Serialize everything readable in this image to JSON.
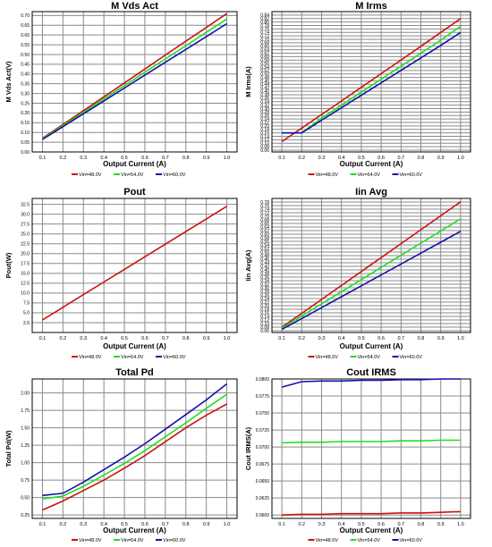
{
  "colors": {
    "vin48": "#cc1111",
    "vin54": "#22dd22",
    "vin60": "#1111aa",
    "grid": "#8a8a8a",
    "axis": "#000000"
  },
  "legend": [
    "Vin=48.0V",
    "Vin=54.0V",
    "Vin=60.0V"
  ],
  "chart_data": [
    {
      "type": "line",
      "title": "M Vds Act",
      "xlabel": "Output Current (A)",
      "ylabel": "M Vds Act(V)",
      "x": [
        0.1,
        0.2,
        0.3,
        0.4,
        0.5,
        0.6,
        0.7,
        0.8,
        0.9,
        1.0
      ],
      "xticks": [
        "0.1",
        "0.2",
        "0.3",
        "0.4",
        "0.5",
        "0.6",
        "0.7",
        "0.8",
        "0.9",
        "1.0"
      ],
      "ylim": [
        0.0,
        0.72
      ],
      "yticks": [
        "0.00",
        "0.05",
        "0.10",
        "0.15",
        "0.20",
        "0.25",
        "0.30",
        "0.35",
        "0.40",
        "0.45",
        "0.50",
        "0.55",
        "0.60",
        "0.65",
        "0.70"
      ],
      "series": [
        {
          "name": "Vin=48.0V",
          "color": "#cc1111",
          "values": [
            0.07,
            0.141,
            0.212,
            0.283,
            0.354,
            0.425,
            0.497,
            0.568,
            0.639,
            0.71
          ]
        },
        {
          "name": "Vin=54.0V",
          "color": "#22dd22",
          "values": [
            0.067,
            0.135,
            0.204,
            0.272,
            0.34,
            0.409,
            0.477,
            0.545,
            0.614,
            0.682
          ]
        },
        {
          "name": "Vin=60.0V",
          "color": "#1111aa",
          "values": [
            0.064,
            0.13,
            0.196,
            0.262,
            0.328,
            0.394,
            0.46,
            0.526,
            0.592,
            0.658
          ]
        }
      ]
    },
    {
      "type": "line",
      "title": "M Irms",
      "xlabel": "Output Current (A)",
      "ylabel": "M Irms(A)",
      "x": [
        0.1,
        0.2,
        0.3,
        0.4,
        0.5,
        0.6,
        0.7,
        0.8,
        0.9,
        1.0
      ],
      "xticks": [
        "0.1",
        "0.2",
        "0.3",
        "0.4",
        "0.5",
        "0.6",
        "0.7",
        "0.8",
        "0.9",
        "1.0"
      ],
      "ylim": [
        0.05,
        0.86
      ],
      "yticks": [
        "0.06",
        "0.08",
        "0.10",
        "0.12",
        "0.14",
        "0.16",
        "0.18",
        "0.20",
        "0.22",
        "0.24",
        "0.26",
        "0.28",
        "0.30",
        "0.32",
        "0.34",
        "0.36",
        "0.38",
        "0.40",
        "0.42",
        "0.44",
        "0.46",
        "0.48",
        "0.50",
        "0.52",
        "0.54",
        "0.56",
        "0.58",
        "0.60",
        "0.62",
        "0.64",
        "0.66",
        "0.68",
        "0.70",
        "0.72",
        "0.74",
        "0.76",
        "0.78",
        "0.80",
        "0.82",
        "0.84"
      ],
      "series": [
        {
          "name": "Vin=48.0V",
          "color": "#cc1111",
          "values": [
            0.11,
            0.188,
            0.266,
            0.344,
            0.423,
            0.502,
            0.581,
            0.66,
            0.74,
            0.82
          ]
        },
        {
          "name": "Vin=54.0V",
          "color": "#22dd22",
          "values": [
            0.16,
            0.16,
            0.245,
            0.32,
            0.395,
            0.47,
            0.545,
            0.62,
            0.695,
            0.775
          ]
        },
        {
          "name": "Vin=60.0V",
          "color": "#1111aa",
          "values": [
            0.16,
            0.16,
            0.233,
            0.305,
            0.377,
            0.449,
            0.521,
            0.593,
            0.665,
            0.74
          ]
        }
      ]
    },
    {
      "type": "line",
      "title": "Pout",
      "xlabel": "Output Current (A)",
      "ylabel": "Pout(W)",
      "x": [
        0.1,
        0.2,
        0.3,
        0.4,
        0.5,
        0.6,
        0.7,
        0.8,
        0.9,
        1.0
      ],
      "xticks": [
        "0.1",
        "0.2",
        "0.3",
        "0.4",
        "0.5",
        "0.6",
        "0.7",
        "0.8",
        "0.9",
        "1.0"
      ],
      "ylim": [
        0.0,
        34.0
      ],
      "yticks": [
        "2.5",
        "5.0",
        "7.5",
        "10.0",
        "12.5",
        "15.0",
        "17.5",
        "20.0",
        "22.5",
        "25.0",
        "27.5",
        "30.0",
        "32.5"
      ],
      "series": [
        {
          "name": "Vin=48.0V",
          "color": "#cc1111",
          "values": [
            3.2,
            6.4,
            9.6,
            12.8,
            16.0,
            19.2,
            22.4,
            25.6,
            28.8,
            32.0
          ]
        }
      ]
    },
    {
      "type": "line",
      "title": "Iin Avg",
      "xlabel": "Output Current (A)",
      "ylabel": "Iin Avg(A)",
      "x": [
        0.1,
        0.2,
        0.3,
        0.4,
        0.5,
        0.6,
        0.7,
        0.8,
        0.9,
        1.0
      ],
      "xticks": [
        "0.1",
        "0.2",
        "0.3",
        "0.4",
        "0.5",
        "0.6",
        "0.7",
        "0.8",
        "0.9",
        "1.0"
      ],
      "ylim": [
        0.05,
        0.8
      ],
      "yticks": [
        "0.06",
        "0.08",
        "0.10",
        "0.12",
        "0.14",
        "0.16",
        "0.18",
        "0.20",
        "0.22",
        "0.24",
        "0.26",
        "0.28",
        "0.30",
        "0.32",
        "0.34",
        "0.36",
        "0.38",
        "0.40",
        "0.42",
        "0.44",
        "0.46",
        "0.48",
        "0.50",
        "0.52",
        "0.54",
        "0.56",
        "0.58",
        "0.60",
        "0.62",
        "0.64",
        "0.66",
        "0.68",
        "0.70",
        "0.72",
        "0.74",
        "0.76",
        "0.78"
      ],
      "series": [
        {
          "name": "Vin=48.0V",
          "color": "#cc1111",
          "values": [
            0.08,
            0.157,
            0.235,
            0.313,
            0.391,
            0.469,
            0.547,
            0.625,
            0.703,
            0.781
          ]
        },
        {
          "name": "Vin=54.0V",
          "color": "#22dd22",
          "values": [
            0.074,
            0.142,
            0.21,
            0.278,
            0.346,
            0.414,
            0.482,
            0.55,
            0.618,
            0.686
          ]
        },
        {
          "name": "Vin=60.0V",
          "color": "#1111aa",
          "values": [
            0.067,
            0.128,
            0.189,
            0.25,
            0.311,
            0.372,
            0.433,
            0.494,
            0.555,
            0.616
          ]
        }
      ]
    },
    {
      "type": "line",
      "title": "Total Pd",
      "xlabel": "Output Current (A)",
      "ylabel": "Total Pd(W)",
      "x": [
        0.1,
        0.2,
        0.3,
        0.4,
        0.5,
        0.6,
        0.7,
        0.8,
        0.9,
        1.0
      ],
      "xticks": [
        "0.1",
        "0.2",
        "0.3",
        "0.4",
        "0.5",
        "0.6",
        "0.7",
        "0.8",
        "0.9",
        "1.0"
      ],
      "ylim": [
        0.2,
        2.2
      ],
      "yticks": [
        "0.25",
        "0.50",
        "0.75",
        "1.00",
        "1.25",
        "1.50",
        "1.75",
        "2.00"
      ],
      "series": [
        {
          "name": "Vin=48.0V",
          "color": "#cc1111",
          "values": [
            0.32,
            0.45,
            0.6,
            0.75,
            0.92,
            1.1,
            1.3,
            1.5,
            1.68,
            1.84
          ]
        },
        {
          "name": "Vin=54.0V",
          "color": "#22dd22",
          "values": [
            0.48,
            0.52,
            0.66,
            0.82,
            0.99,
            1.17,
            1.37,
            1.57,
            1.78,
            1.98
          ]
        },
        {
          "name": "Vin=60.0V",
          "color": "#1111aa",
          "values": [
            0.53,
            0.56,
            0.72,
            0.9,
            1.08,
            1.27,
            1.48,
            1.69,
            1.9,
            2.13
          ]
        }
      ]
    },
    {
      "type": "line",
      "title": "Cout IRMS",
      "xlabel": "Output Current (A)",
      "ylabel": "Cout IRMS(A)",
      "x": [
        0.1,
        0.2,
        0.3,
        0.4,
        0.5,
        0.6,
        0.7,
        0.8,
        0.9,
        1.0
      ],
      "xticks": [
        "0.1",
        "0.2",
        "0.3",
        "0.4",
        "0.5",
        "0.6",
        "0.7",
        "0.8",
        "0.9",
        "1.0"
      ],
      "ylim": [
        0.0595,
        0.08
      ],
      "yticks": [
        "0.0600",
        "0.0625",
        "0.0650",
        "0.0675",
        "0.0700",
        "0.0725",
        "0.0750",
        "0.0775",
        "0.0800"
      ],
      "ytick_values": [
        0.06,
        0.0625,
        0.065,
        0.0675,
        0.07,
        0.0725,
        0.075,
        0.0775,
        0.08
      ],
      "series": [
        {
          "name": "Vin=48.0V",
          "color": "#cc1111",
          "values": [
            0.06,
            0.0601,
            0.0601,
            0.0602,
            0.0602,
            0.0602,
            0.0603,
            0.0603,
            0.0604,
            0.0605
          ]
        },
        {
          "name": "Vin=54.0V",
          "color": "#22dd22",
          "values": [
            0.0706,
            0.0707,
            0.0707,
            0.0708,
            0.0708,
            0.0708,
            0.0709,
            0.0709,
            0.071,
            0.071
          ]
        },
        {
          "name": "Vin=60.0V",
          "color": "#1111aa",
          "values": [
            0.0788,
            0.0796,
            0.0797,
            0.0797,
            0.0798,
            0.0798,
            0.0799,
            0.0799,
            0.08,
            0.08
          ]
        }
      ]
    }
  ]
}
